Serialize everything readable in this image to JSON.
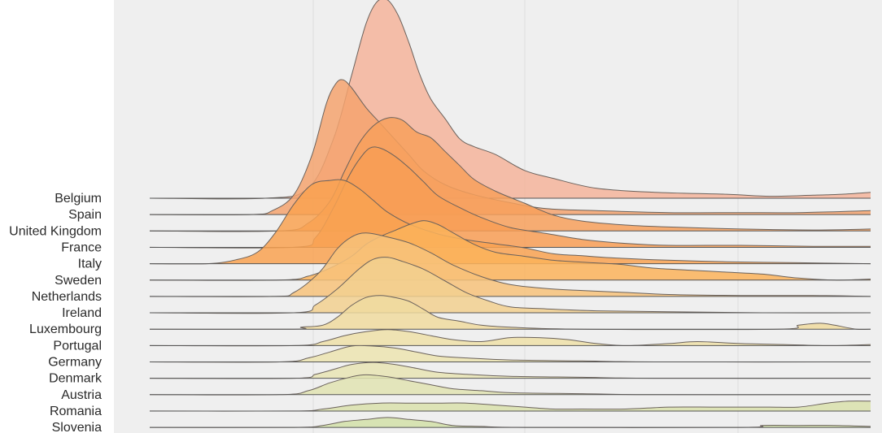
{
  "chart_data": {
    "type": "ridgeline",
    "title": "",
    "xlabel": "",
    "ylabel": "",
    "x_range": [
      0,
      1
    ],
    "grid": "vertical",
    "categories": [
      "Belgium",
      "Spain",
      "United Kingdom",
      "France",
      "Italy",
      "Sweden",
      "Netherlands",
      "Ireland",
      "Luxembourg",
      "Portugal",
      "Germany",
      "Denmark",
      "Austria",
      "Romania",
      "Slovenia"
    ],
    "colors": {
      "background": "#efefef",
      "gridline": "#dcdcdc",
      "outline": "#6b625c",
      "baseline": "#555555",
      "fills": [
        "#f4b49b",
        "#f4a36f",
        "#f7a05c",
        "#f89d55",
        "#f9a251",
        "#fbb35b",
        "#f7c27a",
        "#f2d08f",
        "#f0da9f",
        "#efe0a8",
        "#ece4b0",
        "#e7e4b4",
        "#e1e3b2",
        "#d9e1ac",
        "#d2e0a8"
      ]
    },
    "series": [
      {
        "name": "Belgium",
        "points": [
          [
            0,
            0
          ],
          [
            0.16,
            0
          ],
          [
            0.22,
            0.05
          ],
          [
            0.255,
            0.3
          ],
          [
            0.28,
            0.62
          ],
          [
            0.3,
            0.88
          ],
          [
            0.315,
            0.99
          ],
          [
            0.33,
            1.0
          ],
          [
            0.345,
            0.92
          ],
          [
            0.36,
            0.78
          ],
          [
            0.375,
            0.62
          ],
          [
            0.39,
            0.5
          ],
          [
            0.41,
            0.4
          ],
          [
            0.43,
            0.3
          ],
          [
            0.45,
            0.26
          ],
          [
            0.48,
            0.22
          ],
          [
            0.52,
            0.14
          ],
          [
            0.56,
            0.1
          ],
          [
            0.62,
            0.05
          ],
          [
            0.7,
            0.03
          ],
          [
            0.8,
            0.02
          ],
          [
            0.86,
            0.01
          ],
          [
            0.92,
            0.015
          ],
          [
            0.96,
            0.02
          ],
          [
            1.0,
            0.03
          ]
        ]
      },
      {
        "name": "Spain",
        "points": [
          [
            0,
            0
          ],
          [
            0.14,
            0
          ],
          [
            0.17,
            0.02
          ],
          [
            0.2,
            0.1
          ],
          [
            0.225,
            0.3
          ],
          [
            0.245,
            0.56
          ],
          [
            0.258,
            0.66
          ],
          [
            0.268,
            0.68
          ],
          [
            0.28,
            0.64
          ],
          [
            0.3,
            0.54
          ],
          [
            0.32,
            0.46
          ],
          [
            0.34,
            0.38
          ],
          [
            0.36,
            0.3
          ],
          [
            0.38,
            0.22
          ],
          [
            0.41,
            0.15
          ],
          [
            0.45,
            0.1
          ],
          [
            0.5,
            0.06
          ],
          [
            0.55,
            0.03
          ],
          [
            0.62,
            0.02
          ],
          [
            0.72,
            0.01
          ],
          [
            0.82,
            0.01
          ],
          [
            0.9,
            0.01
          ],
          [
            1.0,
            0.02
          ]
        ]
      },
      {
        "name": "United Kingdom",
        "points": [
          [
            0,
            0
          ],
          [
            0.18,
            0
          ],
          [
            0.22,
            0.04
          ],
          [
            0.25,
            0.15
          ],
          [
            0.27,
            0.3
          ],
          [
            0.29,
            0.44
          ],
          [
            0.31,
            0.53
          ],
          [
            0.33,
            0.57
          ],
          [
            0.35,
            0.56
          ],
          [
            0.37,
            0.5
          ],
          [
            0.39,
            0.47
          ],
          [
            0.41,
            0.4
          ],
          [
            0.43,
            0.33
          ],
          [
            0.45,
            0.26
          ],
          [
            0.48,
            0.2
          ],
          [
            0.52,
            0.14
          ],
          [
            0.56,
            0.08
          ],
          [
            0.6,
            0.05
          ],
          [
            0.66,
            0.03
          ],
          [
            0.72,
            0.02
          ],
          [
            0.82,
            0.01
          ],
          [
            0.92,
            0.005
          ],
          [
            1.0,
            0.01
          ]
        ]
      },
      {
        "name": "France",
        "points": [
          [
            0,
            0
          ],
          [
            0.2,
            0
          ],
          [
            0.23,
            0.05
          ],
          [
            0.255,
            0.2
          ],
          [
            0.275,
            0.35
          ],
          [
            0.29,
            0.44
          ],
          [
            0.305,
            0.5
          ],
          [
            0.32,
            0.5
          ],
          [
            0.34,
            0.46
          ],
          [
            0.36,
            0.4
          ],
          [
            0.38,
            0.33
          ],
          [
            0.4,
            0.26
          ],
          [
            0.43,
            0.2
          ],
          [
            0.46,
            0.15
          ],
          [
            0.5,
            0.1
          ],
          [
            0.55,
            0.07
          ],
          [
            0.6,
            0.04
          ],
          [
            0.66,
            0.02
          ],
          [
            0.72,
            0.01
          ],
          [
            0.82,
            0.01
          ],
          [
            0.92,
            0.005
          ],
          [
            1.0,
            0.005
          ]
        ]
      },
      {
        "name": "Italy",
        "points": [
          [
            0,
            0
          ],
          [
            0.08,
            0
          ],
          [
            0.12,
            0.02
          ],
          [
            0.15,
            0.06
          ],
          [
            0.175,
            0.16
          ],
          [
            0.2,
            0.3
          ],
          [
            0.225,
            0.4
          ],
          [
            0.25,
            0.42
          ],
          [
            0.27,
            0.42
          ],
          [
            0.29,
            0.38
          ],
          [
            0.31,
            0.32
          ],
          [
            0.33,
            0.26
          ],
          [
            0.36,
            0.2
          ],
          [
            0.4,
            0.15
          ],
          [
            0.44,
            0.12
          ],
          [
            0.48,
            0.1
          ],
          [
            0.52,
            0.08
          ],
          [
            0.56,
            0.05
          ],
          [
            0.6,
            0.04
          ],
          [
            0.64,
            0.03
          ],
          [
            0.7,
            0.02
          ],
          [
            0.8,
            0.01
          ],
          [
            0.9,
            0.005
          ],
          [
            1.0,
            0.0
          ]
        ]
      },
      {
        "name": "Sweden",
        "points": [
          [
            0,
            0
          ],
          [
            0.18,
            0
          ],
          [
            0.22,
            0.02
          ],
          [
            0.25,
            0.06
          ],
          [
            0.28,
            0.12
          ],
          [
            0.3,
            0.18
          ],
          [
            0.32,
            0.22
          ],
          [
            0.34,
            0.25
          ],
          [
            0.36,
            0.28
          ],
          [
            0.38,
            0.3
          ],
          [
            0.4,
            0.28
          ],
          [
            0.42,
            0.24
          ],
          [
            0.45,
            0.18
          ],
          [
            0.48,
            0.14
          ],
          [
            0.52,
            0.12
          ],
          [
            0.56,
            0.1
          ],
          [
            0.6,
            0.09
          ],
          [
            0.65,
            0.08
          ],
          [
            0.7,
            0.06
          ],
          [
            0.75,
            0.05
          ],
          [
            0.8,
            0.04
          ],
          [
            0.85,
            0.03
          ],
          [
            0.9,
            0.01
          ],
          [
            0.95,
            0.0
          ],
          [
            1.0,
            0.005
          ]
        ]
      },
      {
        "name": "Netherlands",
        "points": [
          [
            0,
            0
          ],
          [
            0.17,
            0
          ],
          [
            0.2,
            0.02
          ],
          [
            0.235,
            0.12
          ],
          [
            0.26,
            0.24
          ],
          [
            0.28,
            0.3
          ],
          [
            0.3,
            0.32
          ],
          [
            0.33,
            0.3
          ],
          [
            0.36,
            0.27
          ],
          [
            0.39,
            0.22
          ],
          [
            0.42,
            0.16
          ],
          [
            0.46,
            0.1
          ],
          [
            0.5,
            0.06
          ],
          [
            0.55,
            0.04
          ],
          [
            0.6,
            0.03
          ],
          [
            0.66,
            0.02
          ],
          [
            0.72,
            0.01
          ],
          [
            0.82,
            0.005
          ],
          [
            0.92,
            0.005
          ],
          [
            1.0,
            0.0
          ]
        ]
      },
      {
        "name": "Ireland",
        "points": [
          [
            0,
            0
          ],
          [
            0.2,
            0
          ],
          [
            0.23,
            0.04
          ],
          [
            0.26,
            0.12
          ],
          [
            0.29,
            0.22
          ],
          [
            0.31,
            0.27
          ],
          [
            0.33,
            0.28
          ],
          [
            0.35,
            0.26
          ],
          [
            0.38,
            0.22
          ],
          [
            0.41,
            0.16
          ],
          [
            0.44,
            0.1
          ],
          [
            0.47,
            0.06
          ],
          [
            0.5,
            0.03
          ],
          [
            0.55,
            0.02
          ],
          [
            0.62,
            0.01
          ],
          [
            0.72,
            0.005
          ],
          [
            0.85,
            0.0
          ],
          [
            1.0,
            0.0
          ]
        ]
      },
      {
        "name": "Luxembourg",
        "points": [
          [
            0,
            0
          ],
          [
            0.2,
            0
          ],
          [
            0.21,
            0.01
          ],
          [
            0.24,
            0.02
          ],
          [
            0.26,
            0.06
          ],
          [
            0.28,
            0.12
          ],
          [
            0.3,
            0.16
          ],
          [
            0.32,
            0.17
          ],
          [
            0.34,
            0.16
          ],
          [
            0.36,
            0.14
          ],
          [
            0.38,
            0.1
          ],
          [
            0.4,
            0.06
          ],
          [
            0.43,
            0.04
          ],
          [
            0.46,
            0.02
          ],
          [
            0.5,
            0.01
          ],
          [
            0.6,
            0.0
          ],
          [
            0.87,
            0.0
          ],
          [
            0.9,
            0.02
          ],
          [
            0.93,
            0.03
          ],
          [
            0.95,
            0.02
          ],
          [
            0.98,
            0.0
          ],
          [
            1.0,
            0.0
          ]
        ]
      },
      {
        "name": "Portugal",
        "points": [
          [
            0,
            0
          ],
          [
            0.2,
            0
          ],
          [
            0.24,
            0.02
          ],
          [
            0.27,
            0.05
          ],
          [
            0.3,
            0.07
          ],
          [
            0.33,
            0.08
          ],
          [
            0.36,
            0.07
          ],
          [
            0.39,
            0.05
          ],
          [
            0.42,
            0.03
          ],
          [
            0.46,
            0.02
          ],
          [
            0.5,
            0.04
          ],
          [
            0.54,
            0.04
          ],
          [
            0.58,
            0.03
          ],
          [
            0.62,
            0.01
          ],
          [
            0.66,
            0.0
          ],
          [
            0.72,
            0.01
          ],
          [
            0.76,
            0.02
          ],
          [
            0.82,
            0.01
          ],
          [
            0.88,
            0.005
          ],
          [
            0.94,
            0.0
          ],
          [
            1.0,
            0.005
          ]
        ]
      },
      {
        "name": "Germany",
        "points": [
          [
            0,
            0
          ],
          [
            0.18,
            0
          ],
          [
            0.22,
            0.02
          ],
          [
            0.25,
            0.05
          ],
          [
            0.28,
            0.08
          ],
          [
            0.31,
            0.08
          ],
          [
            0.34,
            0.07
          ],
          [
            0.37,
            0.05
          ],
          [
            0.4,
            0.03
          ],
          [
            0.44,
            0.02
          ],
          [
            0.5,
            0.01
          ],
          [
            0.6,
            0.005
          ],
          [
            0.7,
            0.0
          ],
          [
            1.0,
            0.0
          ]
        ]
      },
      {
        "name": "Denmark",
        "points": [
          [
            0,
            0
          ],
          [
            0.2,
            0
          ],
          [
            0.23,
            0.02
          ],
          [
            0.26,
            0.05
          ],
          [
            0.28,
            0.07
          ],
          [
            0.31,
            0.08
          ],
          [
            0.34,
            0.07
          ],
          [
            0.37,
            0.05
          ],
          [
            0.4,
            0.03
          ],
          [
            0.44,
            0.02
          ],
          [
            0.5,
            0.01
          ],
          [
            0.6,
            0.005
          ],
          [
            0.7,
            0.0
          ],
          [
            1.0,
            0.0
          ]
        ]
      },
      {
        "name": "Austria",
        "points": [
          [
            0,
            0
          ],
          [
            0.18,
            0
          ],
          [
            0.22,
            0.02
          ],
          [
            0.25,
            0.06
          ],
          [
            0.28,
            0.09
          ],
          [
            0.3,
            0.1
          ],
          [
            0.33,
            0.09
          ],
          [
            0.36,
            0.07
          ],
          [
            0.39,
            0.05
          ],
          [
            0.42,
            0.03
          ],
          [
            0.46,
            0.02
          ],
          [
            0.5,
            0.01
          ],
          [
            0.6,
            0.005
          ],
          [
            0.7,
            0.0
          ],
          [
            1.0,
            0.0
          ]
        ]
      },
      {
        "name": "Romania",
        "points": [
          [
            0,
            0
          ],
          [
            0.2,
            0
          ],
          [
            0.24,
            0.01
          ],
          [
            0.28,
            0.03
          ],
          [
            0.32,
            0.04
          ],
          [
            0.36,
            0.04
          ],
          [
            0.4,
            0.04
          ],
          [
            0.44,
            0.04
          ],
          [
            0.48,
            0.03
          ],
          [
            0.52,
            0.02
          ],
          [
            0.56,
            0.01
          ],
          [
            0.6,
            0.01
          ],
          [
            0.66,
            0.01
          ],
          [
            0.72,
            0.02
          ],
          [
            0.78,
            0.02
          ],
          [
            0.82,
            0.02
          ],
          [
            0.86,
            0.02
          ],
          [
            0.9,
            0.02
          ],
          [
            0.94,
            0.04
          ],
          [
            0.97,
            0.05
          ],
          [
            1.0,
            0.05
          ]
        ]
      },
      {
        "name": "Slovenia",
        "points": [
          [
            0,
            0
          ],
          [
            0.2,
            0
          ],
          [
            0.24,
            0.01
          ],
          [
            0.27,
            0.03
          ],
          [
            0.3,
            0.04
          ],
          [
            0.33,
            0.05
          ],
          [
            0.36,
            0.04
          ],
          [
            0.39,
            0.03
          ],
          [
            0.42,
            0.01
          ],
          [
            0.46,
            0.005
          ],
          [
            0.52,
            0.0
          ],
          [
            0.82,
            0.0
          ],
          [
            0.85,
            0.01
          ],
          [
            0.9,
            0.01
          ],
          [
            0.95,
            0.01
          ],
          [
            1.0,
            0.005
          ]
        ]
      }
    ]
  }
}
